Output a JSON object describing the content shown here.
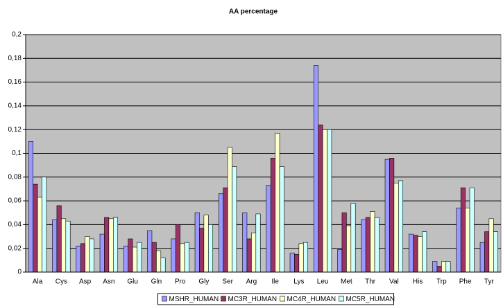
{
  "chart_data": {
    "type": "bar",
    "title": "AA percentage",
    "categories": [
      "Ala",
      "Cys",
      "Asp",
      "Asn",
      "Glu",
      "Gln",
      "Pro",
      "Gly",
      "Ser",
      "Arg",
      "Ile",
      "Lys",
      "Leu",
      "Met",
      "Thr",
      "Val",
      "His",
      "Trp",
      "Phe",
      "Tyr"
    ],
    "series": [
      {
        "name": "MSHR_HUMAN",
        "color": "#9999ff",
        "values": [
          0.11,
          0.044,
          0.022,
          0.032,
          0.022,
          0.035,
          0.028,
          0.05,
          0.066,
          0.05,
          0.073,
          0.016,
          0.174,
          0.019,
          0.044,
          0.095,
          0.032,
          0.009,
          0.054,
          0.025
        ]
      },
      {
        "name": "MC3R_HUMAN",
        "color": "#993366",
        "values": [
          0.074,
          0.056,
          0.024,
          0.046,
          0.028,
          0.025,
          0.04,
          0.037,
          0.071,
          0.028,
          0.096,
          0.015,
          0.124,
          0.05,
          0.046,
          0.096,
          0.031,
          0.005,
          0.071,
          0.034
        ]
      },
      {
        "name": "MC4R_HUMAN",
        "color": "#ffffcc",
        "values": [
          0.063,
          0.045,
          0.03,
          0.045,
          0.021,
          0.018,
          0.024,
          0.048,
          0.105,
          0.033,
          0.117,
          0.024,
          0.12,
          0.039,
          0.051,
          0.075,
          0.03,
          0.009,
          0.054,
          0.045
        ]
      },
      {
        "name": "MC5R_HUMAN",
        "color": "#ccffff",
        "values": [
          0.08,
          0.043,
          0.028,
          0.046,
          0.025,
          0.012,
          0.025,
          0.04,
          0.089,
          0.049,
          0.089,
          0.025,
          0.12,
          0.058,
          0.046,
          0.077,
          0.034,
          0.009,
          0.071,
          0.034
        ]
      }
    ],
    "ylim": [
      0,
      0.2
    ],
    "yticks": [
      0,
      {
        "value": 0.02,
        "label": "0,02"
      },
      {
        "value": 0.04,
        "label": "0,04"
      },
      {
        "value": 0.06,
        "label": "0,06"
      },
      {
        "value": 0.08,
        "label": "0,08"
      },
      {
        "value": 0.1,
        "label": "0,1"
      },
      {
        "value": 0.12,
        "label": "0,12"
      },
      {
        "value": 0.14,
        "label": "0,14"
      },
      {
        "value": 0.16,
        "label": "0,16"
      },
      {
        "value": 0.18,
        "label": "0,18"
      },
      {
        "value": 0.2,
        "label": "0,2"
      }
    ],
    "grid": true,
    "legend": "bottom",
    "plot_background": "#c0c0c0"
  }
}
